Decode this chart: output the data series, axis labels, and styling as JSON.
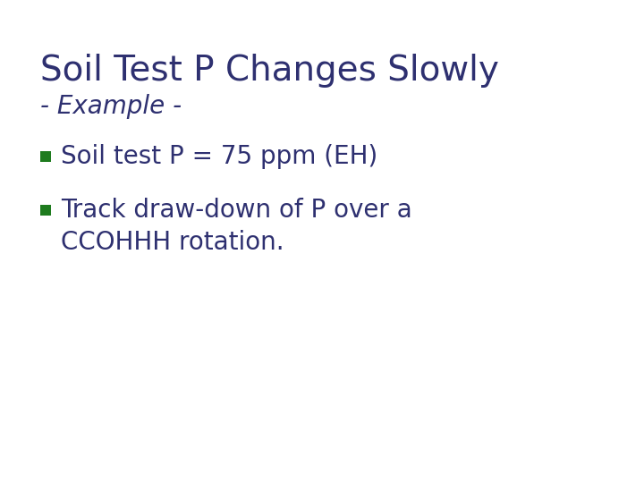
{
  "title": "Soil Test P Changes Slowly",
  "subtitle": "- Example -",
  "bullet1": "Soil test P = 75 ppm (EH)",
  "bullet2_line1": "Track draw-down of P over a",
  "bullet2_line2": "CCOHHH rotation.",
  "title_color": "#2E3070",
  "subtitle_color": "#2E3070",
  "bullet_text_color": "#2E3070",
  "bullet_square_color": "#1E7B1E",
  "background_color": "#FFFFFF",
  "title_fontsize": 28,
  "subtitle_fontsize": 20,
  "bullet_fontsize": 20
}
